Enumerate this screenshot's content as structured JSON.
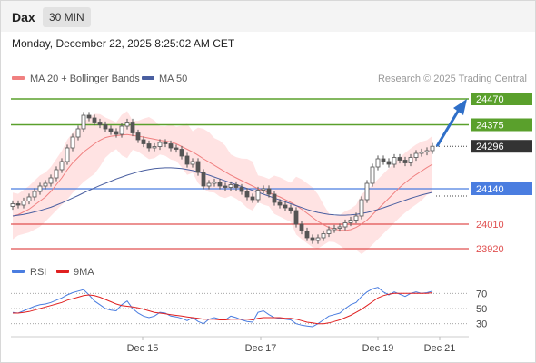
{
  "header": {
    "symbol": "Dax",
    "interval": "30 MIN",
    "timestamp": "Monday, December 22, 2025 8:25:02 AM CET"
  },
  "legend": {
    "ma20_label": "MA 20 + Bollinger Bands",
    "ma50_label": "MA 50",
    "rsi_label": "RSI",
    "ma9_label": "9MA",
    "credit": "Research © 2025 Trading Central"
  },
  "colors": {
    "candle": "#555555",
    "ma20": "#f08080",
    "bollinger_fill": "#ffe3e3",
    "ma50": "#4a5fa0",
    "resistance": "#5aa02c",
    "support": "#4a7de0",
    "target_red": "#e05050",
    "arrow": "#2f6fc8",
    "last_price_bg": "#333333",
    "rsi": "#4a7de0",
    "rsi_ma": "#e02020"
  },
  "chart_data": [
    {
      "type": "candlestick",
      "title": "Dax 30 MIN",
      "x_ticks": [
        "Dec 15",
        "Dec 17",
        "Dec 19",
        "Dec 21"
      ],
      "price_levels": [
        {
          "value": 24470,
          "label": "24470",
          "kind": "resistance"
        },
        {
          "value": 24375,
          "label": "24375",
          "kind": "resistance"
        },
        {
          "value": 24296,
          "label": "24296",
          "kind": "last_price"
        },
        {
          "value": 24140,
          "label": "24140",
          "kind": "pivot"
        },
        {
          "value": 24010,
          "label": "24010",
          "kind": "support"
        },
        {
          "value": 23920,
          "label": "23920",
          "kind": "support"
        }
      ],
      "close": [
        24085,
        24080,
        24095,
        24110,
        24130,
        24150,
        24160,
        24180,
        24210,
        24240,
        24290,
        24330,
        24360,
        24410,
        24400,
        24385,
        24375,
        24360,
        24350,
        24340,
        24370,
        24385,
        24345,
        24320,
        24305,
        24290,
        24295,
        24310,
        24305,
        24290,
        24285,
        24260,
        24230,
        24240,
        24200,
        24150,
        24160,
        24165,
        24150,
        24145,
        24155,
        24145,
        24130,
        24110,
        24100,
        24135,
        24140,
        24120,
        24090,
        24080,
        24070,
        24060,
        24010,
        23985,
        23960,
        23950,
        23960,
        23975,
        23990,
        23995,
        24000,
        24015,
        24025,
        24040,
        24100,
        24160,
        24220,
        24250,
        24240,
        24230,
        24255,
        24245,
        24235,
        24255,
        24270,
        24275,
        24280,
        24296
      ],
      "ma20": [
        24040,
        24045,
        24055,
        24065,
        24080,
        24095,
        24110,
        24130,
        24155,
        24180,
        24210,
        24235,
        24255,
        24275,
        24290,
        24305,
        24318,
        24328,
        24333,
        24335,
        24337,
        24339,
        24336,
        24333,
        24330,
        24326,
        24322,
        24318,
        24315,
        24312,
        24305,
        24295,
        24285,
        24275,
        24263,
        24250,
        24238,
        24226,
        24214,
        24202,
        24190,
        24180,
        24170,
        24160,
        24150,
        24140,
        24133,
        24126,
        24118,
        24110,
        24100,
        24090,
        24078,
        24065,
        24050,
        24035,
        24020,
        24008,
        23998,
        23992,
        23988,
        23987,
        23990,
        23998,
        24010,
        24025,
        24045,
        24065,
        24085,
        24105,
        24125,
        24145,
        24162,
        24178,
        24192,
        24205,
        24218,
        24230
      ],
      "ma50": [
        24040,
        24043,
        24046,
        24050,
        24055,
        24060,
        24066,
        24072,
        24080,
        24088,
        24097,
        24106,
        24115,
        24125,
        24134,
        24143,
        24152,
        24160,
        24168,
        24176,
        24183,
        24190,
        24196,
        24202,
        24207,
        24211,
        24214,
        24216,
        24217,
        24217,
        24216,
        24214,
        24211,
        24207,
        24202,
        24196,
        24190,
        24183,
        24176,
        24169,
        24162,
        24155,
        24148,
        24141,
        24134,
        24127,
        24120,
        24113,
        24106,
        24099,
        24092,
        24085,
        24078,
        24071,
        24064,
        24058,
        24053,
        24049,
        24046,
        24044,
        24043,
        24043,
        24044,
        24046,
        24049,
        24053,
        24058,
        24064,
        24070,
        24077,
        24084,
        24091,
        24098,
        24105,
        24111,
        24117,
        24122,
        24127
      ],
      "y_range": [
        23900,
        24500
      ]
    },
    {
      "type": "line",
      "title": "RSI",
      "series": [
        {
          "name": "RSI",
          "values": [
            45,
            44,
            47,
            50,
            53,
            55,
            56,
            58,
            61,
            64,
            68,
            71,
            73,
            75,
            68,
            60,
            55,
            50,
            48,
            47,
            55,
            60,
            50,
            44,
            40,
            38,
            40,
            45,
            44,
            40,
            39,
            37,
            34,
            38,
            33,
            30,
            36,
            38,
            36,
            35,
            40,
            38,
            35,
            33,
            32,
            45,
            47,
            42,
            38,
            37,
            36,
            35,
            30,
            28,
            27,
            26,
            30,
            35,
            40,
            42,
            44,
            50,
            55,
            58,
            66,
            72,
            76,
            78,
            72,
            68,
            72,
            69,
            66,
            70,
            72,
            70,
            71,
            73
          ]
        },
        {
          "name": "9MA",
          "values": [
            44,
            44,
            45,
            46,
            48,
            50,
            52,
            54,
            56,
            58,
            61,
            63,
            65,
            67,
            68,
            67,
            65,
            62,
            59,
            56,
            54,
            53,
            52,
            51,
            49,
            47,
            45,
            44,
            43,
            42,
            41,
            40,
            39,
            38,
            37,
            36,
            36,
            36,
            35,
            35,
            36,
            36,
            36,
            36,
            35,
            37,
            38,
            38,
            38,
            38,
            37,
            37,
            36,
            34,
            32,
            31,
            30,
            30,
            31,
            33,
            35,
            38,
            41,
            45,
            49,
            54,
            59,
            64,
            67,
            69,
            70,
            70,
            70,
            70,
            70,
            70,
            70,
            71
          ]
        }
      ],
      "y_ticks": [
        "70",
        "50",
        "30"
      ],
      "y_range": [
        20,
        80
      ]
    }
  ]
}
